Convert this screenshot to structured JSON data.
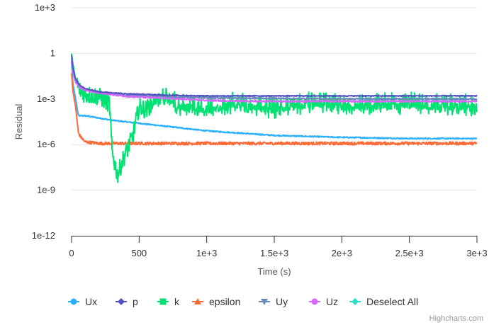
{
  "chart_data": {
    "type": "line",
    "title": "",
    "xlabel": "Time (s)",
    "ylabel": "Residual",
    "yscale": "log",
    "xlim": [
      0,
      3000
    ],
    "ylim": [
      1e-12,
      1000
    ],
    "x_ticks": [
      0,
      500,
      1000,
      1500,
      2000,
      2500,
      3000
    ],
    "x_tick_labels": [
      "0",
      "500",
      "1e+3",
      "1.5e+3",
      "2e+3",
      "2.5e+3",
      "3e+3"
    ],
    "y_ticks": [
      1000,
      1,
      0.001,
      1e-06,
      1e-09,
      1e-12
    ],
    "y_tick_labels": [
      "1e+3",
      "1",
      "1e-3",
      "1e-6",
      "1e-9",
      "1e-12"
    ],
    "grid": true,
    "legend_position": "bottom",
    "series": [
      {
        "name": "Ux",
        "color": "#2caffe",
        "marker": "circle",
        "x": [
          0,
          10,
          30,
          50,
          100,
          300,
          600,
          1000,
          1500,
          2000,
          2500,
          3000
        ],
        "y": [
          0.3,
          0.01,
          0.001,
          8e-05,
          8e-05,
          4e-05,
          2e-05,
          8e-06,
          4e-06,
          3e-06,
          2.5e-06,
          2.5e-06
        ],
        "noise": 0.04
      },
      {
        "name": "p",
        "color": "#544fc5",
        "marker": "diamond",
        "x": [
          0,
          10,
          30,
          60,
          100,
          200,
          400,
          700,
          1000,
          1500,
          2000,
          2500,
          3000
        ],
        "y": [
          0.8,
          0.1,
          0.02,
          0.008,
          0.005,
          0.003,
          0.0022,
          0.0018,
          0.0016,
          0.0016,
          0.0016,
          0.0016,
          0.0016
        ],
        "noise": 0.03
      },
      {
        "name": "k",
        "color": "#00e272",
        "marker": "square",
        "x": [
          0,
          10,
          30,
          60,
          100,
          200,
          280,
          300,
          340,
          380,
          450,
          500,
          550,
          650,
          800,
          1000,
          1200,
          1500,
          1800,
          2000,
          2500,
          3000
        ],
        "y": [
          1,
          0.2,
          0.02,
          0.004,
          0.002,
          0.0015,
          0.0005,
          3e-07,
          1e-08,
          1e-07,
          3e-06,
          0.0003,
          0.0002,
          0.0015,
          0.0003,
          0.0002,
          0.0004,
          0.0002,
          0.0005,
          0.0003,
          0.0004,
          0.0003
        ],
        "noise": 0.6
      },
      {
        "name": "epsilon",
        "color": "#fe6a35",
        "marker": "triangle",
        "x": [
          0,
          10,
          30,
          50,
          70,
          100,
          200,
          400,
          1000,
          2000,
          3000
        ],
        "y": [
          0.05,
          0.003,
          0.0003,
          6e-06,
          3e-06,
          1.5e-06,
          1.2e-06,
          1.2e-06,
          1.2e-06,
          1.2e-06,
          1.2e-06
        ],
        "noise": 0.1
      },
      {
        "name": "Uy",
        "color": "#6b8abc",
        "marker": "triangle-down",
        "x": [
          0,
          10,
          30,
          60,
          100,
          200,
          400,
          700,
          1000,
          1500,
          2000,
          3000
        ],
        "y": [
          0.5,
          0.08,
          0.015,
          0.007,
          0.004,
          0.0025,
          0.0018,
          0.0014,
          0.0012,
          0.0011,
          0.001,
          0.001
        ],
        "noise": 0.05
      },
      {
        "name": "Uz",
        "color": "#d568fb",
        "marker": "circle",
        "x": [
          0,
          10,
          30,
          60,
          100,
          200,
          400,
          700,
          1000,
          1500,
          2000,
          3000
        ],
        "y": [
          0.3,
          0.06,
          0.012,
          0.006,
          0.004,
          0.0025,
          0.0015,
          0.0011,
          0.0008,
          0.0007,
          0.0007,
          0.0007
        ],
        "noise": 0.05
      }
    ],
    "legend_extra": {
      "name": "Deselect All",
      "color": "#2ee0ca",
      "marker": "diamond"
    }
  },
  "credit": "Highcharts.com"
}
